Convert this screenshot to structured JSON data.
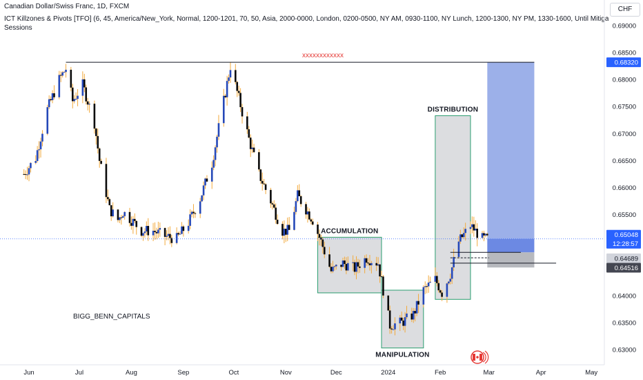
{
  "header": {
    "symbol_line": "Canadian Dollar/Swiss Franc, 1D, FXCM",
    "indicator_line": "ICT Killzones & Pivots [TFO] (6, 45, America/New_York, Normal, 1200-1201, 70, 50, Asia, 2000-0000, London, 0200-0500, NY AM, 0930-1100, NY Lunch, 1200-1300, NY PM, 1330-1600, Until Mitigated, Most Recen",
    "indicator_line_2": "Sessions",
    "currency": "CHF"
  },
  "watermark": "BIGG_BENN_CAPITALS",
  "colors": {
    "bull_body": "#2548b8",
    "bear_body": "#0a0a0a",
    "wick": "#f2a93b",
    "zone_stroke": "#2a9d6f",
    "zone_fill": "#d6d7da",
    "target_fill": "#8ea5e6",
    "stop_fill": "#b3b5ba",
    "red_text": "#e53935",
    "price_line": "#2962ff"
  },
  "chart_data": {
    "type": "candlestick",
    "title": "Canadian Dollar/Swiss Franc, 1D, FXCM",
    "xlabel": "",
    "ylabel": "",
    "y_axis_label": "CHF",
    "ylim": [
      0.6285,
      0.6915
    ],
    "x_ticks": [
      "Jun",
      "Jul",
      "Aug",
      "Sep",
      "Oct",
      "Nov",
      "Dec",
      "2024",
      "Feb",
      "Mar",
      "Apr",
      "May"
    ],
    "y_ticks": [
      0.69,
      0.685,
      0.68,
      0.675,
      0.67,
      0.665,
      0.66,
      0.655,
      0.65,
      0.645,
      0.64,
      0.635,
      0.63
    ],
    "price_path": [
      {
        "date": "2023-05-29",
        "close": 0.6625
      },
      {
        "date": "2023-06-05",
        "close": 0.6655
      },
      {
        "date": "2023-06-12",
        "close": 0.6745
      },
      {
        "date": "2023-06-19",
        "close": 0.68
      },
      {
        "date": "2023-06-23",
        "close": 0.682
      },
      {
        "date": "2023-06-27",
        "close": 0.676
      },
      {
        "date": "2023-07-03",
        "close": 0.679
      },
      {
        "date": "2023-07-06",
        "close": 0.676
      },
      {
        "date": "2023-07-10",
        "close": 0.672
      },
      {
        "date": "2023-07-13",
        "close": 0.665
      },
      {
        "date": "2023-07-19",
        "close": 0.656
      },
      {
        "date": "2023-07-24",
        "close": 0.654
      },
      {
        "date": "2023-07-27",
        "close": 0.6555
      },
      {
        "date": "2023-08-01",
        "close": 0.654
      },
      {
        "date": "2023-08-07",
        "close": 0.652
      },
      {
        "date": "2023-08-14",
        "close": 0.652
      },
      {
        "date": "2023-08-21",
        "close": 0.651
      },
      {
        "date": "2023-08-28",
        "close": 0.6505
      },
      {
        "date": "2023-09-04",
        "close": 0.6535
      },
      {
        "date": "2023-09-11",
        "close": 0.658
      },
      {
        "date": "2023-09-18",
        "close": 0.6645
      },
      {
        "date": "2023-09-25",
        "close": 0.676
      },
      {
        "date": "2023-09-29",
        "close": 0.6825
      },
      {
        "date": "2023-10-04",
        "close": 0.6765
      },
      {
        "date": "2023-10-10",
        "close": 0.669
      },
      {
        "date": "2023-10-16",
        "close": 0.6625
      },
      {
        "date": "2023-10-23",
        "close": 0.6575
      },
      {
        "date": "2023-10-30",
        "close": 0.652
      },
      {
        "date": "2023-11-03",
        "close": 0.652
      },
      {
        "date": "2023-11-08",
        "close": 0.6585
      },
      {
        "date": "2023-11-13",
        "close": 0.656
      },
      {
        "date": "2023-11-17",
        "close": 0.654
      },
      {
        "date": "2023-11-22",
        "close": 0.65
      },
      {
        "date": "2023-11-28",
        "close": 0.6445
      },
      {
        "date": "2023-12-05",
        "close": 0.646
      },
      {
        "date": "2023-12-12",
        "close": 0.645
      },
      {
        "date": "2023-12-19",
        "close": 0.647
      },
      {
        "date": "2023-12-26",
        "close": 0.646
      },
      {
        "date": "2024-01-02",
        "close": 0.6345
      },
      {
        "date": "2024-01-09",
        "close": 0.635
      },
      {
        "date": "2024-01-16",
        "close": 0.6365
      },
      {
        "date": "2024-01-22",
        "close": 0.641
      },
      {
        "date": "2024-01-29",
        "close": 0.643
      },
      {
        "date": "2024-02-02",
        "close": 0.6405
      },
      {
        "date": "2024-02-07",
        "close": 0.644
      },
      {
        "date": "2024-02-12",
        "close": 0.65
      },
      {
        "date": "2024-02-19",
        "close": 0.653
      },
      {
        "date": "2024-02-26",
        "close": 0.6505
      },
      {
        "date": "2024-02-29",
        "close": 0.6505
      }
    ],
    "annotations": {
      "resistance_line": {
        "price": 0.6832,
        "from": "2023-06-23",
        "to": "2024-03-28"
      },
      "resistance_marker": "xxxxxxxxxxxx",
      "zones": [
        {
          "label": "ACCUMULATION",
          "from": "2023-11-20",
          "to": "2023-12-28",
          "top": 0.6508,
          "bottom": 0.6405
        },
        {
          "label": "MANIPULATION",
          "from": "2023-12-28",
          "to": "2024-01-22",
          "top": 0.641,
          "bottom": 0.6303
        },
        {
          "label": "DISTRIBUTION",
          "from": "2024-01-29",
          "to": "2024-02-19",
          "top": 0.6733,
          "bottom": 0.6393
        }
      ],
      "long_position": {
        "from": "2024-02-29",
        "to": "2024-03-28",
        "entry": 0.6505,
        "target": 0.6832,
        "stop": 0.6452
      },
      "horizontal_levels": [
        {
          "price": 0.648,
          "from": "2024-02-07",
          "to": "2024-03-20",
          "style": "solid"
        },
        {
          "price": 0.647,
          "from": "2024-02-07",
          "to": "2024-03-01",
          "style": "dashed"
        },
        {
          "price": 0.646,
          "from": "2024-02-07",
          "to": "2024-04-10",
          "style": "solid"
        }
      ]
    },
    "price_labels": [
      {
        "value": "0.68320",
        "style": "blue"
      },
      {
        "value": "0.65048",
        "style": "blue-current"
      },
      {
        "value": "12:28:57",
        "style": "countdown"
      },
      {
        "value": "0.64689",
        "style": "light"
      },
      {
        "value": "0.64516",
        "style": "dark"
      }
    ]
  }
}
